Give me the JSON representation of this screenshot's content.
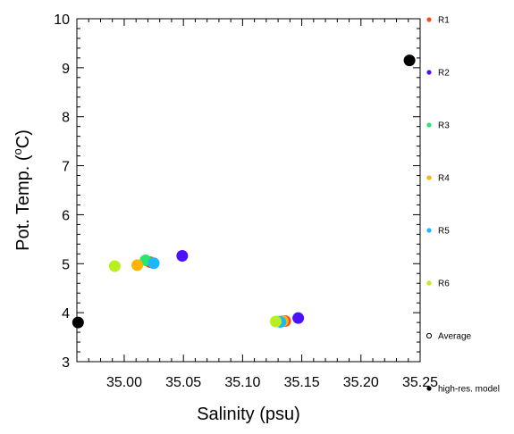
{
  "chart_data": {
    "type": "scatter",
    "xlabel": "Salinity (psu)",
    "ylabel_main": "Pot. Temp. (",
    "ylabel_sup": "o",
    "ylabel_tail": "C)",
    "xlim": [
      34.96,
      35.25
    ],
    "ylim": [
      3,
      10
    ],
    "x_ticks": [
      35.0,
      35.05,
      35.1,
      35.15,
      35.2,
      35.25
    ],
    "x_tick_labels": [
      "35.00",
      "35.05",
      "35.10",
      "35.15",
      "35.20",
      "35.25"
    ],
    "y_ticks": [
      3,
      4,
      5,
      6,
      7,
      8,
      9,
      10
    ],
    "y_tick_labels": [
      "3",
      "4",
      "5",
      "6",
      "7",
      "8",
      "9",
      "10"
    ],
    "grid": false,
    "legend_position": "right",
    "series": [
      {
        "name": "R1",
        "color": "#ff4d1a",
        "points": [
          [
            35.022,
            5.03
          ],
          [
            35.136,
            3.83
          ]
        ]
      },
      {
        "name": "R2",
        "color": "#4a10ff",
        "points": [
          [
            35.049,
            5.16
          ],
          [
            35.147,
            3.89
          ]
        ]
      },
      {
        "name": "R3",
        "color": "#26e86a",
        "points": [
          [
            35.018,
            5.07
          ],
          [
            35.131,
            3.82
          ]
        ]
      },
      {
        "name": "R4",
        "color": "#ffb300",
        "points": [
          [
            35.011,
            4.97
          ],
          [
            35.134,
            3.83
          ]
        ]
      },
      {
        "name": "R5",
        "color": "#1ab8ff",
        "points": [
          [
            35.025,
            5.01
          ],
          [
            35.132,
            3.81
          ]
        ]
      },
      {
        "name": "R6",
        "color": "#b8f01f",
        "points": [
          [
            34.992,
            4.95
          ],
          [
            35.128,
            3.82
          ]
        ]
      },
      {
        "name": "Average",
        "color": "#000000",
        "hollow": true,
        "points": []
      },
      {
        "name": "high-res. model",
        "color": "#000000",
        "points": [
          [
            34.961,
            3.8
          ],
          [
            35.241,
            9.15
          ]
        ]
      }
    ]
  }
}
